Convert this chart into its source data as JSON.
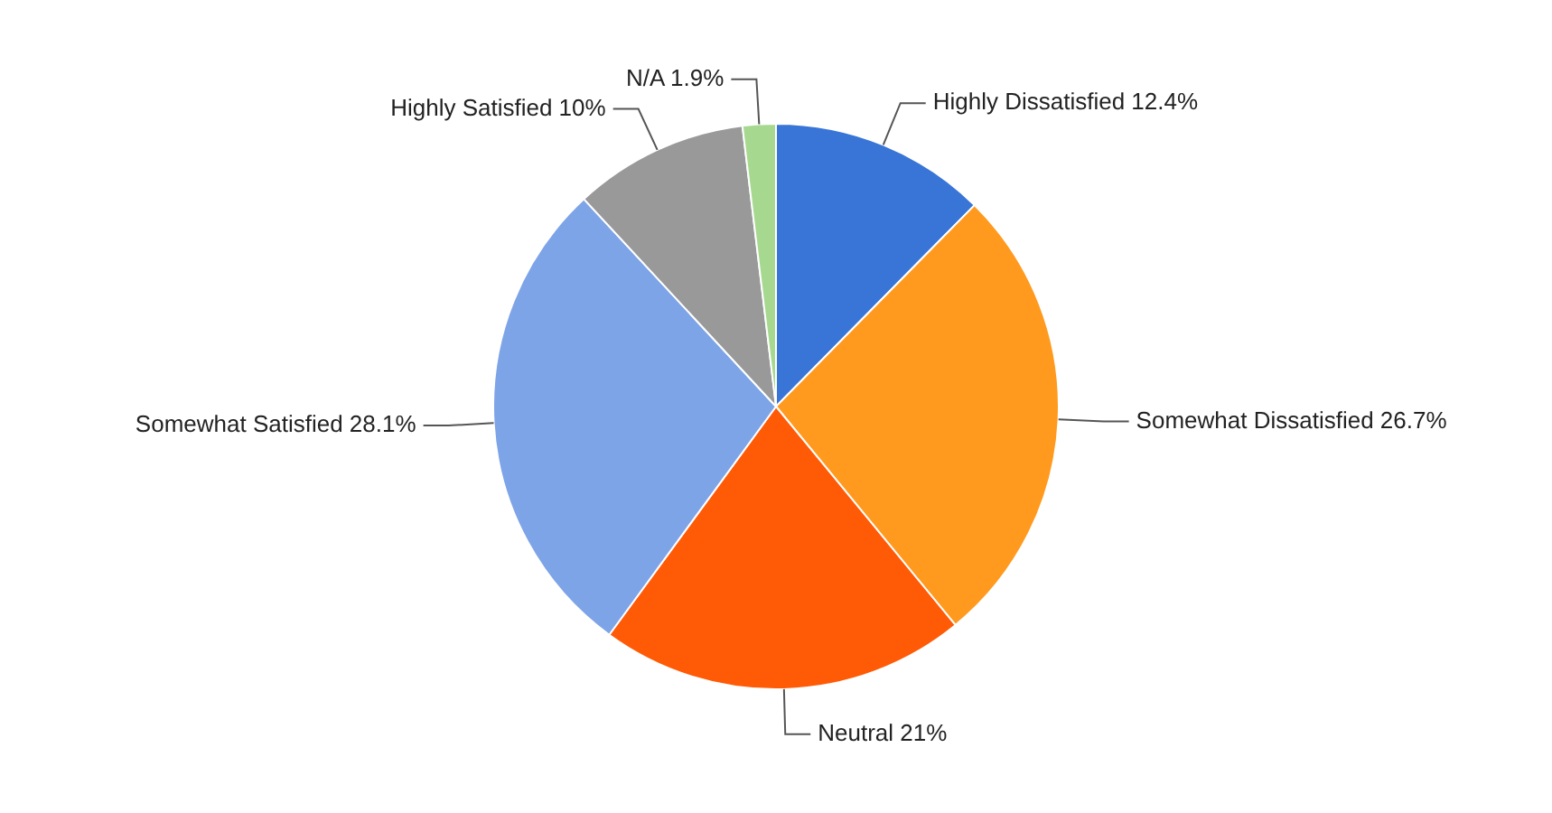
{
  "chart_data": {
    "type": "pie",
    "categories": [
      "Highly Dissatisfied",
      "Somewhat Dissatisfied",
      "Neutral",
      "Somewhat Satisfied",
      "Highly Satisfied",
      "N/A"
    ],
    "values": [
      12.4,
      26.7,
      21,
      28.1,
      10,
      1.9
    ],
    "colors": [
      "#3875d7",
      "#ff9a1e",
      "#ff5a05",
      "#7ea4e8",
      "#999999",
      "#a6d98f"
    ],
    "value_labels": [
      "12.4%",
      "26.7%",
      "21%",
      "28.1%",
      "10%",
      "1.9%"
    ],
    "legend": false
  }
}
